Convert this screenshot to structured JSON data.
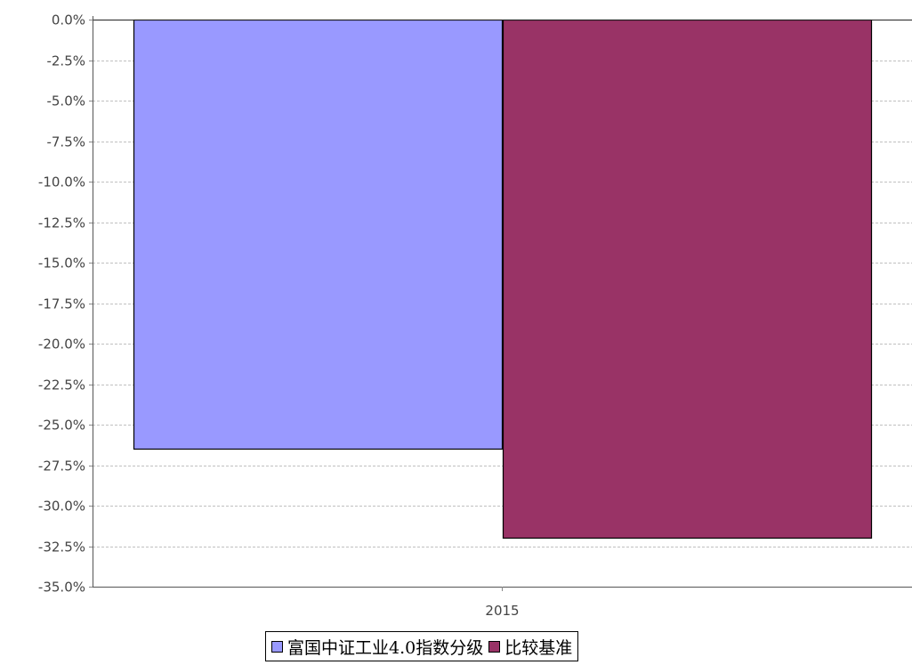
{
  "chart_data": {
    "type": "bar",
    "categories": [
      "2015"
    ],
    "series": [
      {
        "name": "富国中证工业4.0指数分级",
        "values": [
          -26.5
        ],
        "color": "#9999ff"
      },
      {
        "name": "比较基准",
        "values": [
          -32.0
        ],
        "color": "#993366"
      }
    ],
    "ylim": [
      -35.0,
      0.0
    ],
    "yticks": [
      0.0,
      -2.5,
      -5.0,
      -7.5,
      -10.0,
      -12.5,
      -15.0,
      -17.5,
      -20.0,
      -22.5,
      -25.0,
      -27.5,
      -30.0,
      -32.5,
      -35.0
    ],
    "ytick_labels": [
      "0.0%",
      "-2.5%",
      "-5.0%",
      "-7.5%",
      "-10.0%",
      "-12.5%",
      "-15.0%",
      "-17.5%",
      "-20.0%",
      "-22.5%",
      "-25.0%",
      "-27.5%",
      "-30.0%",
      "-32.5%",
      "-35.0%"
    ],
    "grid": true,
    "legend_position": "bottom"
  }
}
